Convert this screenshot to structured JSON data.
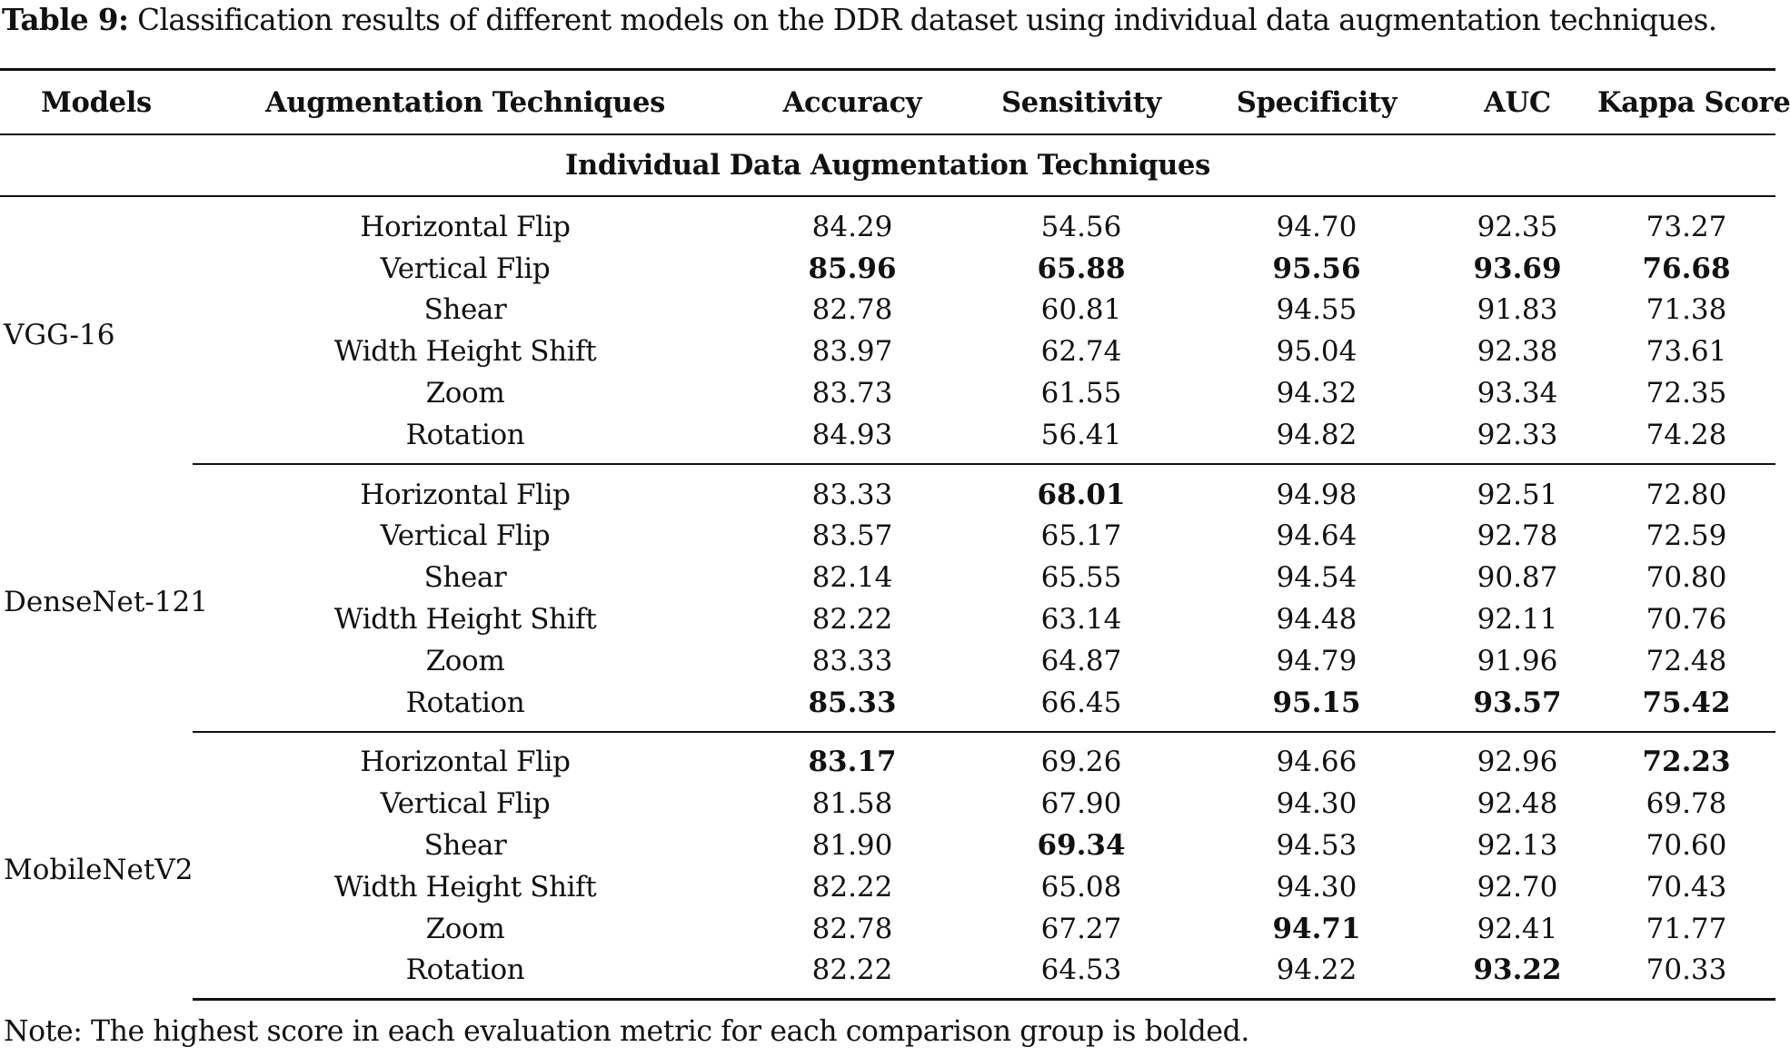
{
  "caption": {
    "label": "Table 9:",
    "text": " Classification results of different models on the DDR dataset using individual data augmentation techniques."
  },
  "table": {
    "headers": [
      "Models",
      "Augmentation Techniques",
      "Accuracy",
      "Sensitivity",
      "Specificity",
      "AUC",
      "Kappa Score"
    ],
    "section_title": "Individual Data Augmentation Techniques",
    "groups": [
      {
        "model": "VGG-16",
        "rows": [
          {
            "technique": "Horizontal Flip",
            "values": [
              "84.29",
              "54.56",
              "94.70",
              "92.35",
              "73.27"
            ],
            "bold": [
              false,
              false,
              false,
              false,
              false
            ]
          },
          {
            "technique": "Vertical Flip",
            "values": [
              "85.96",
              "65.88",
              "95.56",
              "93.69",
              "76.68"
            ],
            "bold": [
              true,
              true,
              true,
              true,
              true
            ]
          },
          {
            "technique": "Shear",
            "values": [
              "82.78",
              "60.81",
              "94.55",
              "91.83",
              "71.38"
            ],
            "bold": [
              false,
              false,
              false,
              false,
              false
            ]
          },
          {
            "technique": "Width Height Shift",
            "values": [
              "83.97",
              "62.74",
              "95.04",
              "92.38",
              "73.61"
            ],
            "bold": [
              false,
              false,
              false,
              false,
              false
            ]
          },
          {
            "technique": "Zoom",
            "values": [
              "83.73",
              "61.55",
              "94.32",
              "93.34",
              "72.35"
            ],
            "bold": [
              false,
              false,
              false,
              false,
              false
            ]
          },
          {
            "technique": "Rotation",
            "values": [
              "84.93",
              "56.41",
              "94.82",
              "92.33",
              "74.28"
            ],
            "bold": [
              false,
              false,
              false,
              false,
              false
            ]
          }
        ]
      },
      {
        "model": "DenseNet-121",
        "rows": [
          {
            "technique": "Horizontal Flip",
            "values": [
              "83.33",
              "68.01",
              "94.98",
              "92.51",
              "72.80"
            ],
            "bold": [
              false,
              true,
              false,
              false,
              false
            ]
          },
          {
            "technique": "Vertical Flip",
            "values": [
              "83.57",
              "65.17",
              "94.64",
              "92.78",
              "72.59"
            ],
            "bold": [
              false,
              false,
              false,
              false,
              false
            ]
          },
          {
            "technique": "Shear",
            "values": [
              "82.14",
              "65.55",
              "94.54",
              "90.87",
              "70.80"
            ],
            "bold": [
              false,
              false,
              false,
              false,
              false
            ]
          },
          {
            "technique": "Width Height Shift",
            "values": [
              "82.22",
              "63.14",
              "94.48",
              "92.11",
              "70.76"
            ],
            "bold": [
              false,
              false,
              false,
              false,
              false
            ]
          },
          {
            "technique": "Zoom",
            "values": [
              "83.33",
              "64.87",
              "94.79",
              "91.96",
              "72.48"
            ],
            "bold": [
              false,
              false,
              false,
              false,
              false
            ]
          },
          {
            "technique": "Rotation",
            "values": [
              "85.33",
              "66.45",
              "95.15",
              "93.57",
              "75.42"
            ],
            "bold": [
              true,
              false,
              true,
              true,
              true
            ]
          }
        ]
      },
      {
        "model": "MobileNetV2",
        "rows": [
          {
            "technique": "Horizontal Flip",
            "values": [
              "83.17",
              "69.26",
              "94.66",
              "92.96",
              "72.23"
            ],
            "bold": [
              true,
              false,
              false,
              false,
              true
            ]
          },
          {
            "technique": "Vertical Flip",
            "values": [
              "81.58",
              "67.90",
              "94.30",
              "92.48",
              "69.78"
            ],
            "bold": [
              false,
              false,
              false,
              false,
              false
            ]
          },
          {
            "technique": "Shear",
            "values": [
              "81.90",
              "69.34",
              "94.53",
              "92.13",
              "70.60"
            ],
            "bold": [
              false,
              true,
              false,
              false,
              false
            ]
          },
          {
            "technique": "Width Height Shift",
            "values": [
              "82.22",
              "65.08",
              "94.30",
              "92.70",
              "70.43"
            ],
            "bold": [
              false,
              false,
              false,
              false,
              false
            ]
          },
          {
            "technique": "Zoom",
            "values": [
              "82.78",
              "67.27",
              "94.71",
              "92.41",
              "71.77"
            ],
            "bold": [
              false,
              false,
              true,
              false,
              false
            ]
          },
          {
            "technique": "Rotation",
            "values": [
              "82.22",
              "64.53",
              "94.22",
              "93.22",
              "70.33"
            ],
            "bold": [
              false,
              false,
              false,
              true,
              false
            ]
          }
        ]
      }
    ]
  },
  "note": "Note: The highest score in each evaluation metric for each comparison group is bolded."
}
